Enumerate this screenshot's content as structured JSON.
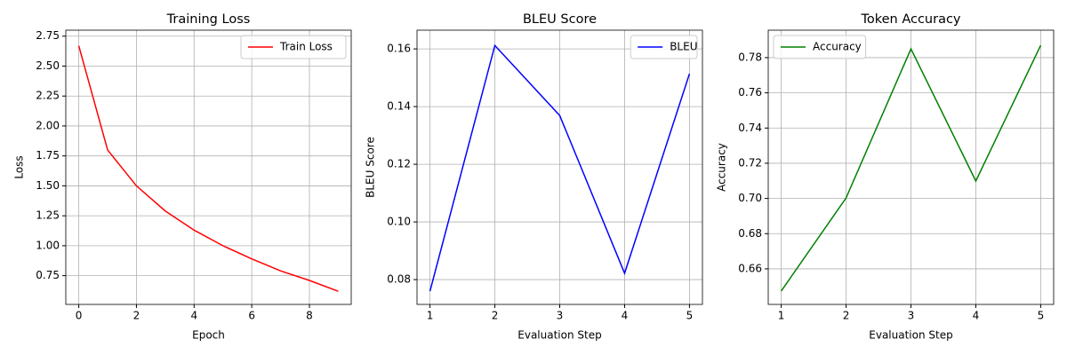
{
  "chart_data": [
    {
      "type": "line",
      "title": "Training Loss",
      "xlabel": "Epoch",
      "ylabel": "Loss",
      "x": [
        0,
        1,
        2,
        3,
        4,
        5,
        6,
        7,
        8,
        9
      ],
      "series": [
        {
          "name": "Train Loss",
          "color": "#ff0000",
          "values": [
            2.67,
            1.8,
            1.5,
            1.29,
            1.13,
            1.0,
            0.89,
            0.79,
            0.71,
            0.62
          ]
        }
      ],
      "xlim": [
        -0.45,
        9.45
      ],
      "xticks": [
        0,
        2,
        4,
        6,
        8
      ],
      "ylim": [
        0.51,
        2.8
      ],
      "yticks": [
        0.75,
        {
          "value": 1,
          "label": "1.00"
        },
        1.25,
        {
          "value": 1.5,
          "label": "1.50"
        },
        1.75,
        {
          "value": 2,
          "label": "2.00"
        },
        2.25,
        {
          "value": 2.5,
          "label": "2.50"
        },
        2.75
      ],
      "grid": true,
      "legend": "upper-right"
    },
    {
      "type": "line",
      "title": "BLEU Score",
      "xlabel": "Evaluation Step",
      "ylabel": "BLEU Score",
      "x": [
        1,
        2,
        3,
        4,
        5
      ],
      "series": [
        {
          "name": "BLEU",
          "color": "#0000ff",
          "values": [
            0.076,
            0.1612,
            0.1369,
            0.0822,
            0.1514
          ]
        }
      ],
      "xlim": [
        0.8,
        5.2
      ],
      "xticks": [
        1,
        2,
        3,
        4,
        5
      ],
      "ylim": [
        0.0714,
        0.1665
      ],
      "yticks": [
        0.08,
        {
          "value": 0.1,
          "label": "0.10"
        },
        0.12,
        0.14,
        0.16
      ],
      "grid": true,
      "legend": "upper-right"
    },
    {
      "type": "line",
      "title": "Token Accuracy",
      "xlabel": "Evaluation Step",
      "ylabel": "Accuracy",
      "x": [
        1,
        2,
        3,
        4,
        5
      ],
      "series": [
        {
          "name": "Accuracy",
          "color": "#008000",
          "values": [
            0.6474,
            0.7003,
            0.785,
            0.7099,
            0.787
          ]
        }
      ],
      "xlim": [
        0.8,
        5.2
      ],
      "xticks": [
        1,
        2,
        3,
        4,
        5
      ],
      "ylim": [
        0.6398,
        0.7956
      ],
      "yticks": [
        0.66,
        0.68,
        {
          "value": 0.7,
          "label": "0.70"
        },
        0.72,
        0.74,
        0.76,
        0.78
      ],
      "grid": true,
      "legend": "upper-left"
    }
  ]
}
